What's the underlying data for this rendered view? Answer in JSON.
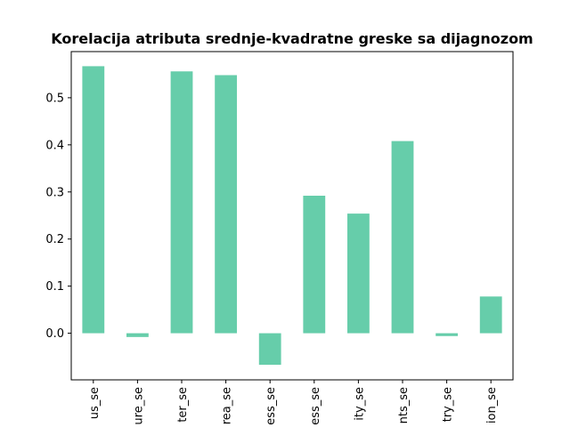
{
  "chart_data": {
    "type": "bar",
    "title": "Korelacija atributa srednje-kvadratne greske sa dijagnozom",
    "xlabel": "",
    "ylabel": "",
    "categories": [
      "us_se",
      "ure_se",
      "ter_se",
      "rea_se",
      "ess_se",
      "ess_se",
      "ity_se",
      "nts_se",
      "try_se",
      "ion_se"
    ],
    "values": [
      0.567,
      -0.008,
      0.556,
      0.548,
      -0.067,
      0.292,
      0.254,
      0.408,
      -0.006,
      0.078
    ],
    "yticks": [
      0.0,
      0.1,
      0.2,
      0.3,
      0.4,
      0.5
    ],
    "ytick_labels": [
      "0.0",
      "0.1",
      "0.2",
      "0.3",
      "0.4",
      "0.5"
    ],
    "ylim": [
      -0.099,
      0.598
    ],
    "grid": false,
    "bar_color": "#66cdaa"
  }
}
